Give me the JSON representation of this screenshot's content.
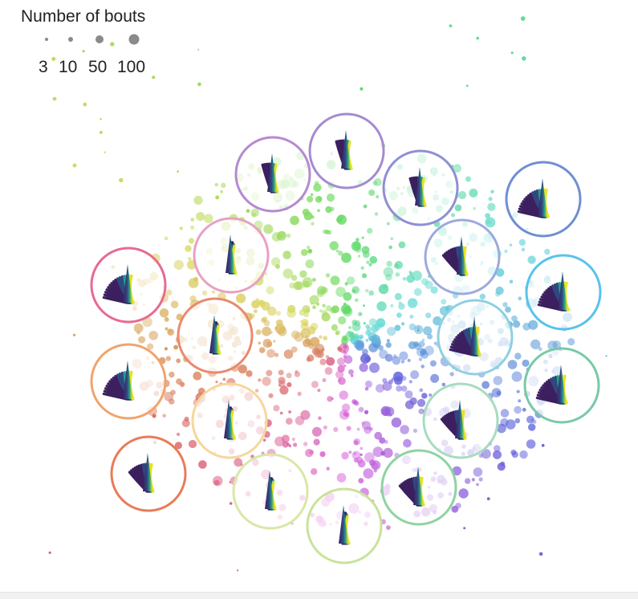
{
  "chart_data": {
    "type": "scatter",
    "title": "",
    "legend": {
      "title": "Number of bouts",
      "placement": "top-left",
      "entries": [
        {
          "label": "3",
          "size_value": 3
        },
        {
          "label": "10",
          "size_value": 10
        },
        {
          "label": "50",
          "size_value": 50
        },
        {
          "label": "100",
          "size_value": 100
        }
      ]
    },
    "axes": {
      "shown": false,
      "grid": false
    },
    "encoding": {
      "color": "cyclic hue around the cloud",
      "size": "Number of bouts"
    },
    "clusters": [
      {
        "id": 1,
        "color": "#b58ad0",
        "tail": "narrow fan"
      },
      {
        "id": 2,
        "color": "#a58bd0",
        "tail": "narrow curled"
      },
      {
        "id": 3,
        "color": "#8f8fd3",
        "tail": "narrow curled"
      },
      {
        "id": 4,
        "color": "#6f8fd2",
        "tail": "wide fan"
      },
      {
        "id": 5,
        "color": "#9ea9dc",
        "tail": "medium fan"
      },
      {
        "id": 6,
        "color": "#58c3ea",
        "tail": "wide fan"
      },
      {
        "id": 7,
        "color": "#8fd0e0",
        "tail": "wide fan"
      },
      {
        "id": 8,
        "color": "#79c9a6",
        "tail": "wide fan"
      },
      {
        "id": 9,
        "color": "#a7dcc0",
        "tail": "medium fan"
      },
      {
        "id": 10,
        "color": "#8fd3a0",
        "tail": "medium fan"
      },
      {
        "id": 11,
        "color": "#c9e39a",
        "tail": "straight"
      },
      {
        "id": 12,
        "color": "#d9e7a6",
        "tail": "straight"
      },
      {
        "id": 13,
        "color": "#f6d79a",
        "tail": "straight"
      },
      {
        "id": 14,
        "color": "#e98a6d",
        "tail": "straight"
      },
      {
        "id": 15,
        "color": "#e97b59",
        "tail": "medium fan"
      },
      {
        "id": 16,
        "color": "#f0a46e",
        "tail": "wide fan"
      },
      {
        "id": 17,
        "color": "#e86a90",
        "tail": "wide fan"
      },
      {
        "id": 18,
        "color": "#e9a0c2",
        "tail": "straight"
      }
    ]
  }
}
